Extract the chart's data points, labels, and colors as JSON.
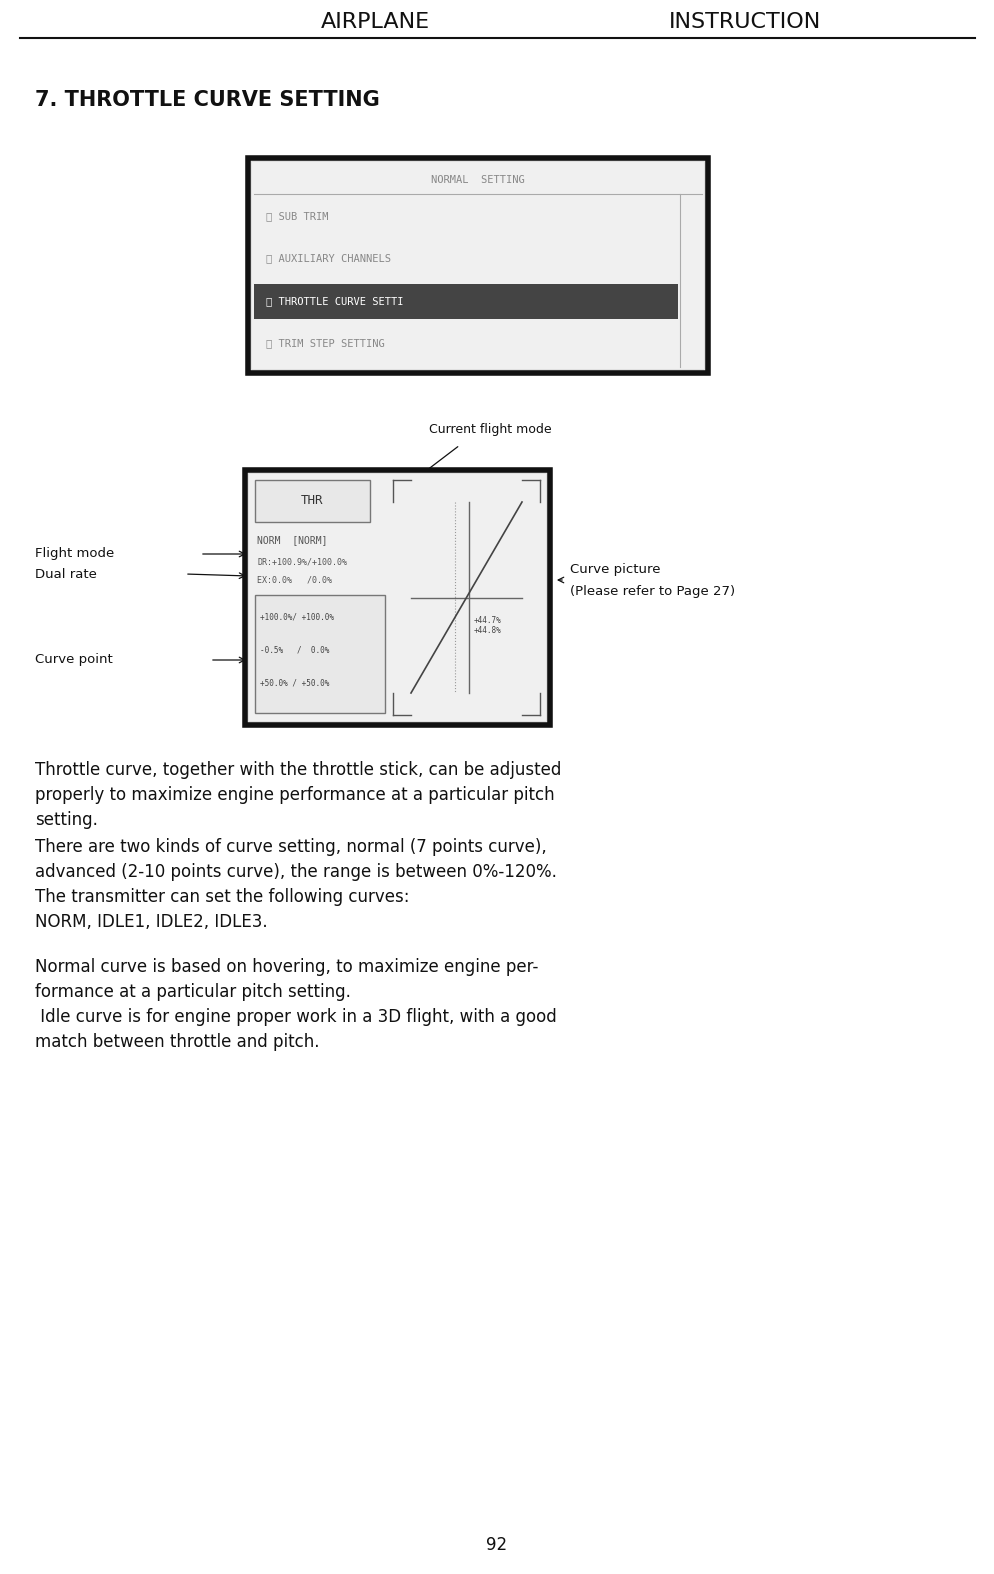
{
  "bg_color": "#ffffff",
  "header_left": "AIRPLANE",
  "header_right": "INSTRUCTION",
  "header_fontsize": 16,
  "title": "7. THROTTLE CURVE SETTING",
  "title_fontsize": 15,
  "page_number": "92"
}
